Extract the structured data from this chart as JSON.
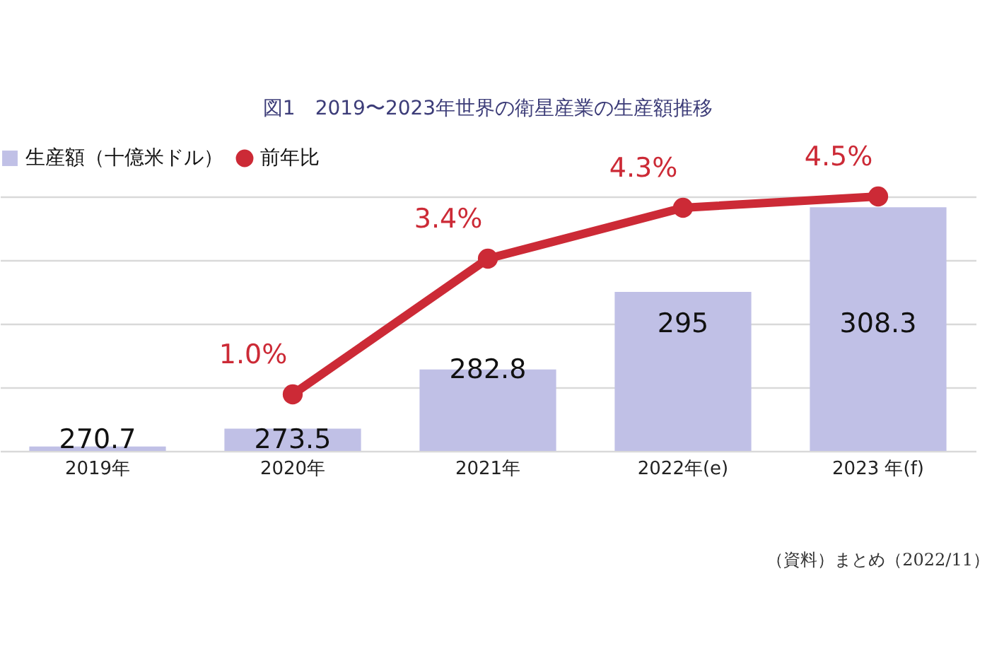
{
  "chart_data": {
    "type": "bar",
    "title": "図1　2019〜2023年世界の衛星産業の生産額推移",
    "categories": [
      "2019年",
      "2020年",
      "2021年",
      "2022年(e)",
      "2023 年(f)"
    ],
    "series": [
      {
        "name": "生産額（十億米ドル）",
        "color": "#c0c0e6",
        "values": [
          270.7,
          273.5,
          282.8,
          295,
          308.3
        ],
        "value_labels": [
          "270.7",
          "273.5",
          "282.8",
          "295",
          "308.3"
        ]
      },
      {
        "name": "前年比",
        "type": "line",
        "axis": "y2",
        "color": "#cc2a36",
        "values": [
          null,
          1.0,
          3.4,
          4.3,
          4.5
        ],
        "value_labels": [
          null,
          "1.0%",
          "3.4%",
          "4.3%",
          "4.5%"
        ]
      }
    ],
    "ylim": [
      270,
      310
    ],
    "yticks": [
      {
        "value": 270,
        "label": null
      },
      {
        "value": 280,
        "label": null
      },
      {
        "value": 290,
        "label": null
      },
      {
        "value": 300,
        "label": null
      },
      {
        "value": 310,
        "label": null
      }
    ],
    "tick_labels": "x",
    "grid": "y",
    "legend": "top",
    "marker": "circle",
    "line_style": "solid",
    "annotations": [
      "（資料）まとめ（2022/11）"
    ]
  }
}
